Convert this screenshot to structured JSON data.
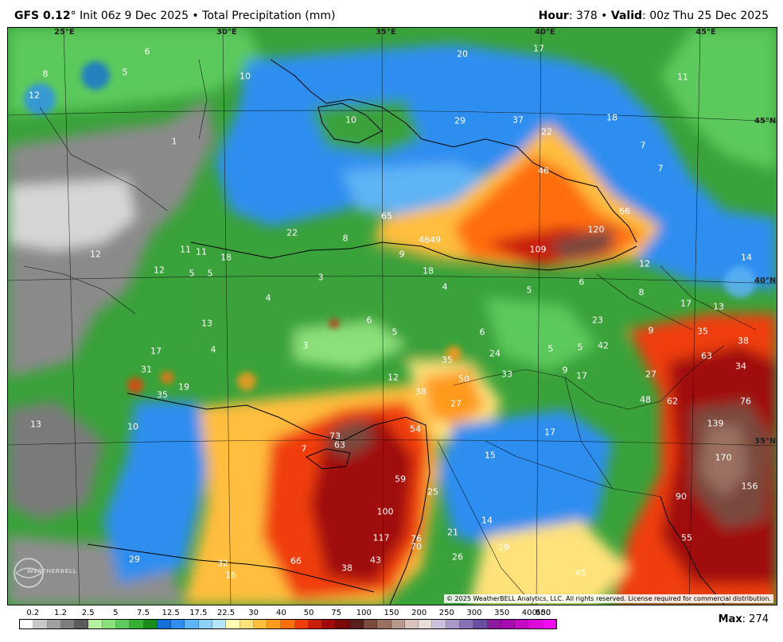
{
  "header": {
    "model": "GFS 0.12",
    "degree": "°",
    "init": " Init 06z 9 Dec 2025 • Total Precipitation (mm)",
    "hour_label": "Hour",
    "hour_value": ": 378 • ",
    "valid_label": "Valid",
    "valid_value": ": 00z Thu 25 Dec 2025"
  },
  "map": {
    "grid_labels": [
      "25°E",
      "30°E",
      "35°E",
      "40°E",
      "45°E",
      "45°N",
      "40°N",
      "35°N"
    ],
    "values": [
      "8",
      "5",
      "6",
      "12",
      "10",
      "10",
      "20",
      "17",
      "11",
      "18",
      "7",
      "29",
      "37",
      "22",
      "46",
      "7",
      "66",
      "120",
      "109",
      "65",
      "4649",
      "22",
      "8",
      "9",
      "11",
      "11",
      "18",
      "12",
      "5",
      "5",
      "18",
      "12",
      "3",
      "4",
      "4",
      "14",
      "6",
      "5",
      "6",
      "8",
      "17",
      "13",
      "12",
      "13",
      "23",
      "9",
      "42",
      "35",
      "38",
      "17",
      "63",
      "34",
      "3",
      "5",
      "6",
      "5",
      "5",
      "24",
      "33",
      "9",
      "17",
      "27",
      "35",
      "12",
      "38",
      "50",
      "48",
      "62",
      "76",
      "31",
      "19",
      "35",
      "73",
      "27",
      "63",
      "54",
      "17",
      "13",
      "10",
      "15",
      "139",
      "170",
      "59",
      "25",
      "156",
      "90",
      "100",
      "14",
      "21",
      "19",
      "117",
      "76",
      "70",
      "55",
      "29",
      "32",
      "16",
      "66",
      "38",
      "43",
      "26",
      "45",
      "7",
      "1",
      "4"
    ]
  },
  "copyright": "© 2025 WeatherBELL Analytics, LLC. All rights reserved. License required for commercial distribution.",
  "logo_text": "WEATHERBELL",
  "legend": {
    "ticks": [
      "0.2",
      "1.2",
      "2.5",
      "5",
      "7.5",
      "12.5",
      "17.5",
      "22.5",
      "30",
      "40",
      "50",
      "75",
      "100",
      "150",
      "200",
      "250",
      "300",
      "350",
      "400",
      "450",
      "500"
    ],
    "colors": [
      "#ffffff",
      "#c8c8c8",
      "#a0a0a0",
      "#7c7c7c",
      "#5a5a5a",
      "#b4f0a0",
      "#8ce07a",
      "#5cc95c",
      "#34b034",
      "#1a8c1a",
      "#126fd6",
      "#2e8ef0",
      "#5fb4f5",
      "#8fd0f8",
      "#b4e6fa",
      "#ffffb4",
      "#ffe27a",
      "#ffbe3c",
      "#ff9a1c",
      "#ff6e0a",
      "#f03c0a",
      "#c81e0a",
      "#a00a0a",
      "#780a0a",
      "#5a1e1e",
      "#7a4a3c",
      "#9a7060",
      "#b89a8c",
      "#d8c4bc",
      "#e8dcd8",
      "#c8c0dc",
      "#a898c8",
      "#8870b4",
      "#6a4ca0",
      "#8c1c9c",
      "#a80ab0",
      "#c40ac4",
      "#dc0ad8",
      "#f00af0"
    ]
  },
  "max": {
    "label": "Max",
    "value": ": 274"
  }
}
